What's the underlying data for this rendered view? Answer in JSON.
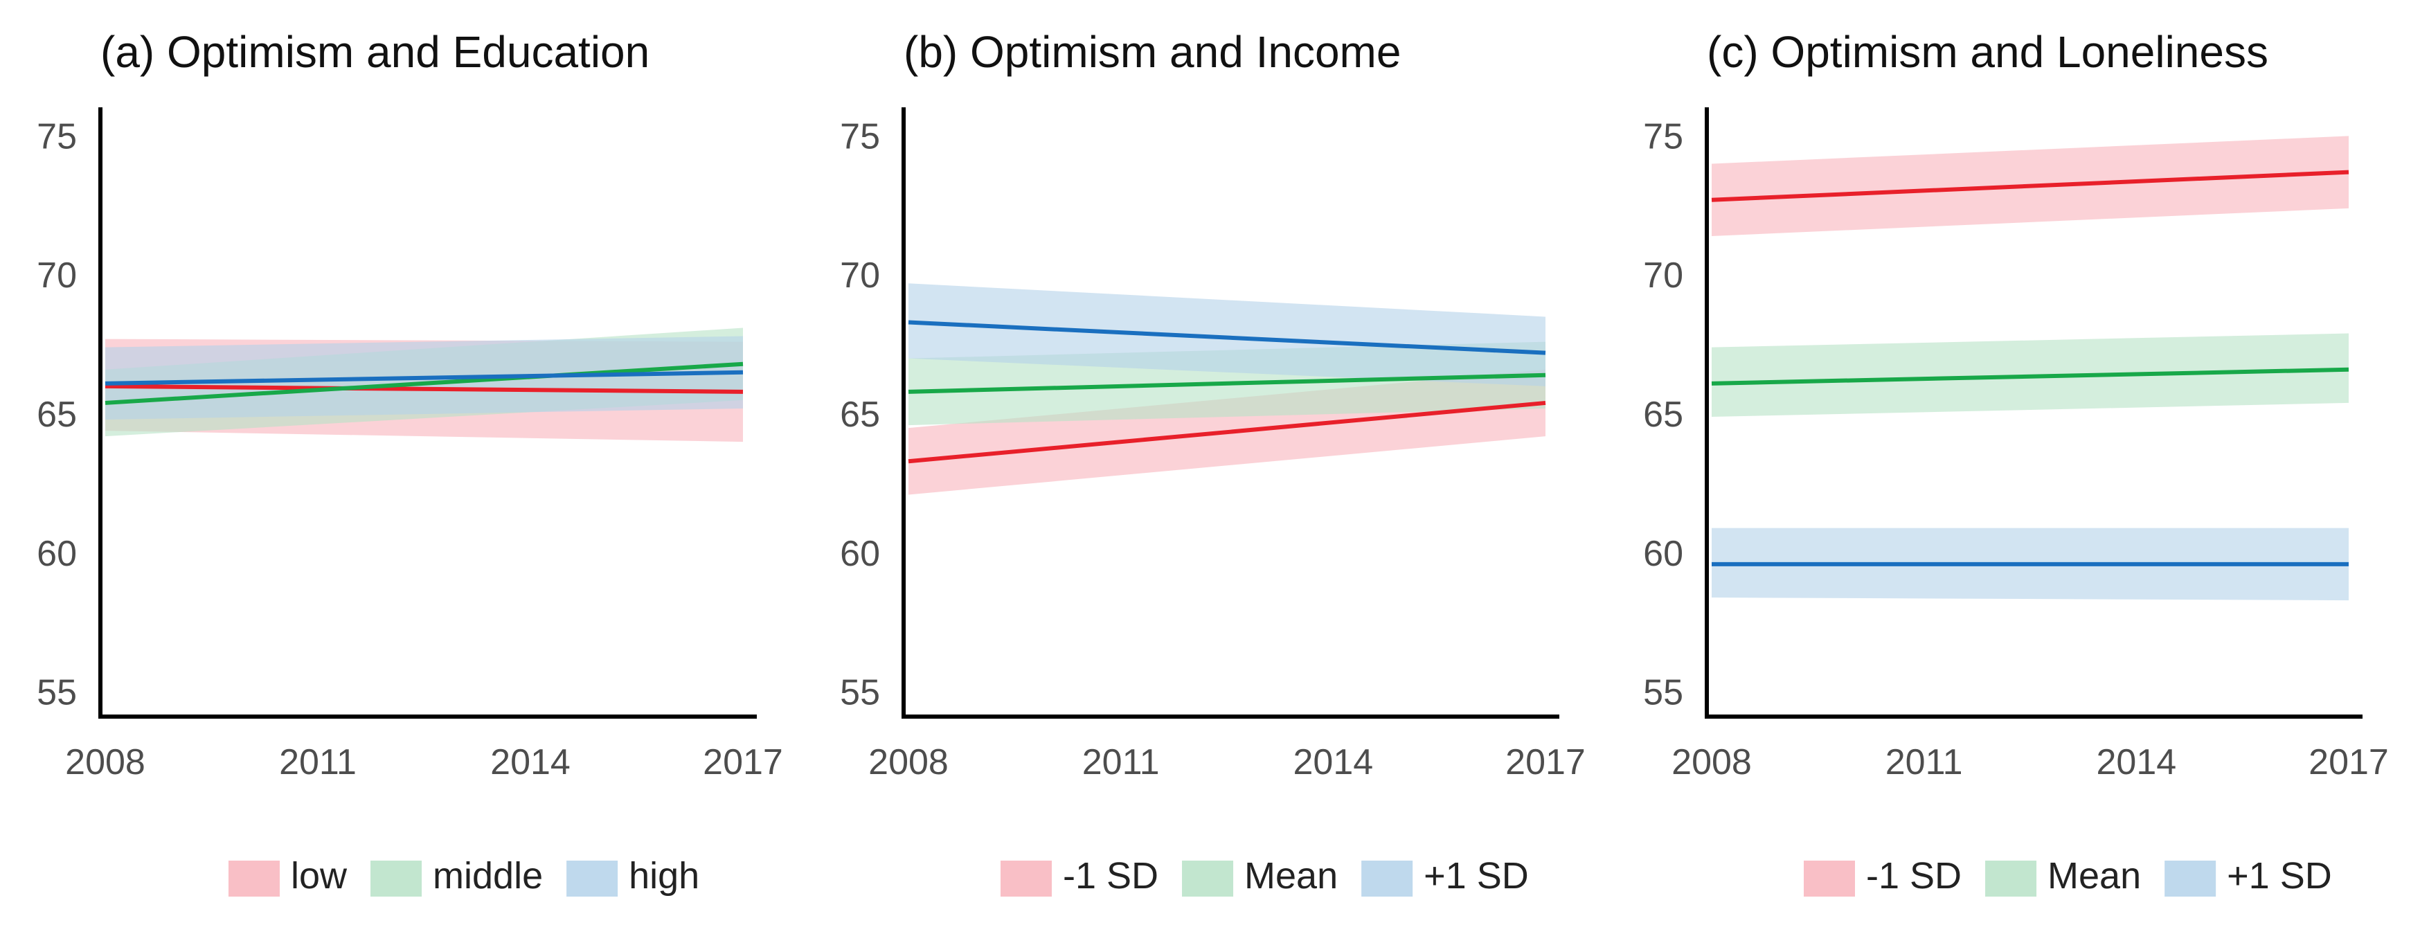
{
  "chart_data": [
    {
      "type": "line",
      "title": "(a) Optimism and Education",
      "xlabel": "",
      "ylabel": "",
      "x_ticks": [
        "2008",
        "2011",
        "2014",
        "2017"
      ],
      "y_ticks": [
        "55",
        "60",
        "65",
        "70",
        "75"
      ],
      "xlim": [
        2008,
        2017
      ],
      "ylim": [
        54,
        76
      ],
      "grid": false,
      "legend_position": "bottom",
      "series": [
        {
          "name": "low",
          "color": "#e8202a",
          "band_color": "#f8b4bc",
          "x": [
            2008,
            2017
          ],
          "y": [
            66.0,
            65.8
          ],
          "lower": [
            64.4,
            64.0
          ],
          "upper": [
            67.7,
            67.6
          ]
        },
        {
          "name": "middle",
          "color": "#18a849",
          "band_color": "#b7e2c7",
          "x": [
            2008,
            2017
          ],
          "y": [
            65.4,
            66.8
          ],
          "lower": [
            64.2,
            65.5
          ],
          "upper": [
            66.6,
            68.1
          ]
        },
        {
          "name": "high",
          "color": "#1a6fbf",
          "band_color": "#b4d2ea",
          "x": [
            2008,
            2017
          ],
          "y": [
            66.1,
            66.5
          ],
          "lower": [
            64.8,
            65.2
          ],
          "upper": [
            67.4,
            67.8
          ]
        }
      ]
    },
    {
      "type": "line",
      "title": "(b) Optimism and Income",
      "xlabel": "",
      "ylabel": "",
      "x_ticks": [
        "2008",
        "2011",
        "2014",
        "2017"
      ],
      "y_ticks": [
        "55",
        "60",
        "65",
        "70",
        "75"
      ],
      "xlim": [
        2008,
        2017
      ],
      "ylim": [
        54,
        76
      ],
      "grid": false,
      "legend_position": "bottom",
      "series": [
        {
          "name": "-1 SD",
          "color": "#e8202a",
          "band_color": "#f8b4bc",
          "x": [
            2008,
            2017
          ],
          "y": [
            63.3,
            65.4
          ],
          "lower": [
            62.1,
            64.2
          ],
          "upper": [
            64.5,
            66.6
          ]
        },
        {
          "name": "Mean",
          "color": "#18a849",
          "band_color": "#b7e2c7",
          "x": [
            2008,
            2017
          ],
          "y": [
            65.8,
            66.4
          ],
          "lower": [
            64.6,
            65.2
          ],
          "upper": [
            67.0,
            67.6
          ]
        },
        {
          "name": "+1 SD",
          "color": "#1a6fbf",
          "band_color": "#b4d2ea",
          "x": [
            2008,
            2017
          ],
          "y": [
            68.3,
            67.2
          ],
          "lower": [
            67.0,
            66.0
          ],
          "upper": [
            69.7,
            68.5
          ]
        }
      ]
    },
    {
      "type": "line",
      "title": "(c) Optimism and Loneliness",
      "xlabel": "",
      "ylabel": "",
      "x_ticks": [
        "2008",
        "2011",
        "2014",
        "2017"
      ],
      "y_ticks": [
        "55",
        "60",
        "65",
        "70",
        "75"
      ],
      "xlim": [
        2008,
        2017
      ],
      "ylim": [
        54,
        76
      ],
      "grid": false,
      "legend_position": "bottom",
      "series": [
        {
          "name": "-1 SD",
          "color": "#e8202a",
          "band_color": "#f8b4bc",
          "x": [
            2008,
            2017
          ],
          "y": [
            72.7,
            73.7
          ],
          "lower": [
            71.4,
            72.4
          ],
          "upper": [
            74.0,
            75.0
          ]
        },
        {
          "name": "Mean",
          "color": "#18a849",
          "band_color": "#b7e2c7",
          "x": [
            2008,
            2017
          ],
          "y": [
            66.1,
            66.6
          ],
          "lower": [
            64.9,
            65.4
          ],
          "upper": [
            67.4,
            67.9
          ]
        },
        {
          "name": "+1 SD",
          "color": "#1a6fbf",
          "band_color": "#b4d2ea",
          "x": [
            2008,
            2017
          ],
          "y": [
            59.6,
            59.6
          ],
          "lower": [
            58.4,
            58.3
          ],
          "upper": [
            60.9,
            60.9
          ]
        }
      ]
    }
  ]
}
